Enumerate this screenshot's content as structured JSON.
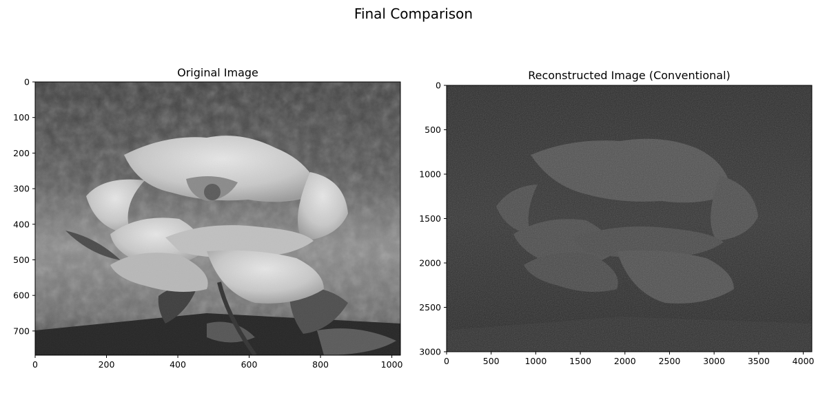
{
  "figure": {
    "title": "Final Comparison"
  },
  "chart_data": [
    {
      "type": "heatmap",
      "title": "Original Image",
      "colormap": "gray",
      "xlim": [
        0,
        1024
      ],
      "ylim": [
        768,
        0
      ],
      "xticks": [
        0,
        200,
        400,
        600,
        800,
        1000
      ],
      "yticks": [
        0,
        100,
        200,
        300,
        400,
        500,
        600,
        700
      ],
      "grid": false
    },
    {
      "type": "heatmap",
      "title": "Reconstructed Image (Conventional)",
      "colormap": "gray",
      "xlim": [
        0,
        4096
      ],
      "ylim": [
        3000,
        0
      ],
      "xticks": [
        0,
        500,
        1000,
        1500,
        2000,
        2500,
        3000,
        3500,
        4000
      ],
      "yticks": [
        0,
        500,
        1000,
        1500,
        2000,
        2500,
        3000
      ],
      "grid": false
    }
  ]
}
